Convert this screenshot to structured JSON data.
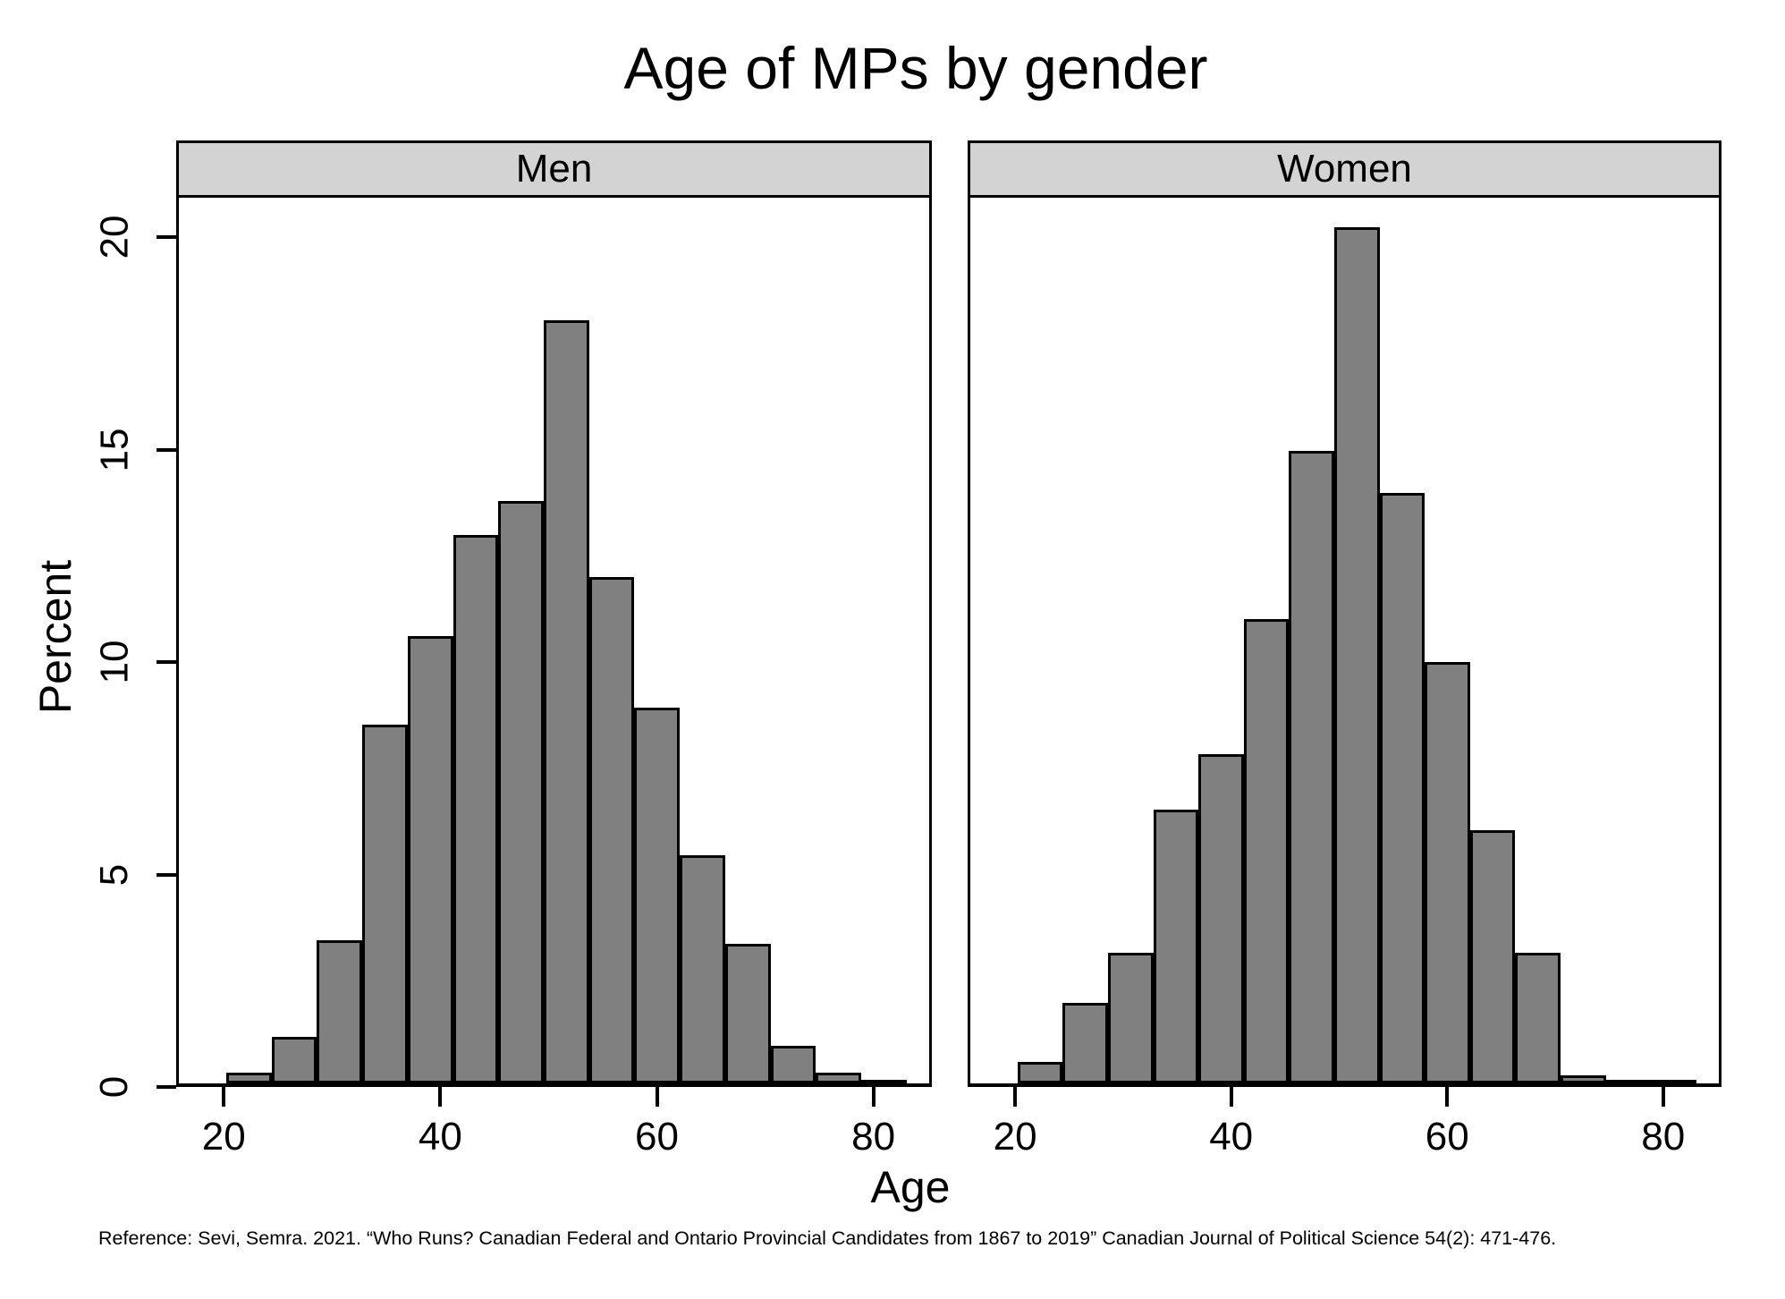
{
  "title": "Age of MPs by gender",
  "y_axis": {
    "label": "Percent",
    "ticks": [
      0,
      5,
      10,
      15,
      20
    ]
  },
  "x_axis": {
    "label": "Age",
    "ticks": [
      20,
      40,
      60,
      80
    ]
  },
  "footer": "Reference: Sevi, Semra. 2021. “Who Runs? Canadian Federal and Ontario Provincial Candidates from 1867 to 2019” Canadian Journal of Political Science 54(2): 471-476.",
  "colors": {
    "bar_fill": "#808080",
    "bar_border": "#000000",
    "strip_fill": "#d3d3d3",
    "panel_border": "#000000",
    "background": "#ffffff",
    "text": "#000000"
  },
  "chart_data": {
    "type": "bar",
    "chart_kind": "faceted-histogram",
    "title": "Age of MPs by gender",
    "xlabel": "Age",
    "ylabel": "Percent",
    "x_domain": [
      15.6,
      85.4
    ],
    "ylim": [
      0,
      21
    ],
    "x_ticks": [
      20,
      40,
      60,
      80
    ],
    "y_ticks": [
      0,
      5,
      10,
      15,
      20
    ],
    "bin_start": 20,
    "bin_width": 4.22,
    "value_unit": "percent",
    "grid": false,
    "legend": "none",
    "facets": [
      {
        "label": "Men",
        "values": [
          0.25,
          1.1,
          3.4,
          8.5,
          10.6,
          13.0,
          13.8,
          18.1,
          12.0,
          8.9,
          5.4,
          3.3,
          0.9,
          0.25,
          0.05
        ]
      },
      {
        "label": "Women",
        "values": [
          0.5,
          1.9,
          3.1,
          6.5,
          7.8,
          11.0,
          15.0,
          20.3,
          14.0,
          10.0,
          6.0,
          3.1,
          0.2,
          0.07,
          0.05
        ]
      }
    ]
  }
}
